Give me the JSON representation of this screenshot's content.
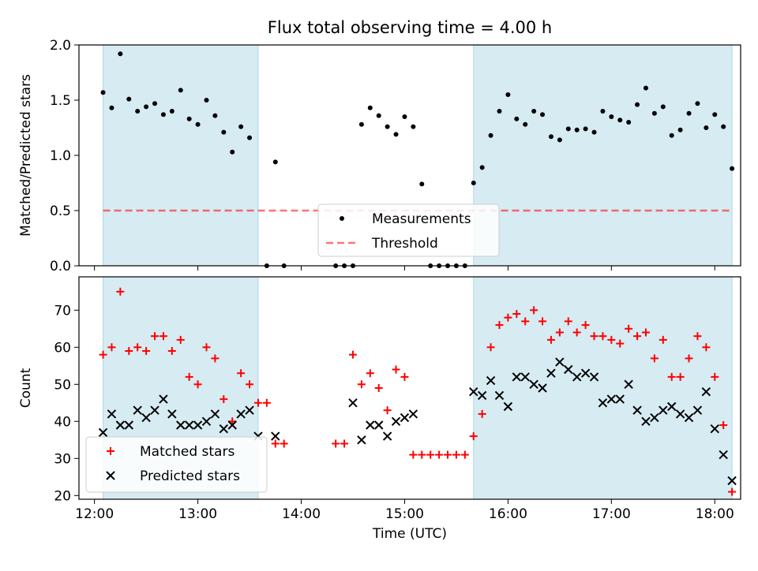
{
  "title": "Flux total observing time = 4.00 h",
  "colors": {
    "shade": "#add8e6",
    "measurements": "#000000",
    "threshold": "#ff0000",
    "matched": "#ff0000",
    "predicted": "#000000"
  },
  "chart_data": [
    {
      "type": "scatter",
      "ylabel": "Matched/Predicted stars",
      "ylim": [
        0,
        2.0
      ],
      "yticks": [
        "0.0",
        "0.5",
        "1.0",
        "1.5",
        "2.0"
      ],
      "grid": false,
      "legend_position": "bottom-center",
      "shaded_intervals": [
        [
          "12:05",
          "13:35"
        ],
        [
          "15:40",
          "18:10"
        ]
      ],
      "threshold": {
        "name": "Threshold",
        "value": 0.5,
        "x": [
          "12:05",
          "18:10"
        ]
      },
      "series": [
        {
          "name": "Measurements",
          "x": [
            "12:05",
            "12:10",
            "12:15",
            "12:20",
            "12:25",
            "12:30",
            "12:35",
            "12:40",
            "12:45",
            "12:50",
            "12:55",
            "13:00",
            "13:05",
            "13:10",
            "13:15",
            "13:20",
            "13:25",
            "13:30",
            "13:40",
            "13:45",
            "13:50",
            "14:20",
            "14:25",
            "14:30",
            "14:35",
            "14:40",
            "14:45",
            "14:50",
            "14:55",
            "15:00",
            "15:05",
            "15:10",
            "15:15",
            "15:20",
            "15:25",
            "15:30",
            "15:35",
            "15:40",
            "15:45",
            "15:50",
            "15:55",
            "16:00",
            "16:05",
            "16:10",
            "16:15",
            "16:20",
            "16:25",
            "16:30",
            "16:35",
            "16:40",
            "16:45",
            "16:50",
            "16:55",
            "17:00",
            "17:05",
            "17:10",
            "17:15",
            "17:20",
            "17:25",
            "17:30",
            "17:35",
            "17:40",
            "17:45",
            "17:50",
            "17:55",
            "18:00",
            "18:05",
            "18:10"
          ],
          "y": [
            1.57,
            1.43,
            1.92,
            1.51,
            1.4,
            1.44,
            1.47,
            1.37,
            1.4,
            1.59,
            1.33,
            1.28,
            1.5,
            1.36,
            1.21,
            1.03,
            1.26,
            1.16,
            0.0,
            0.94,
            0.0,
            0.0,
            0.0,
            0.0,
            1.28,
            1.43,
            1.36,
            1.26,
            1.19,
            1.35,
            1.26,
            0.74,
            0.0,
            0.0,
            0.0,
            0.0,
            0.0,
            0.75,
            0.89,
            1.18,
            1.4,
            1.55,
            1.33,
            1.28,
            1.4,
            1.37,
            1.17,
            1.14,
            1.24,
            1.23,
            1.24,
            1.21,
            1.4,
            1.35,
            1.32,
            1.3,
            1.46,
            1.61,
            1.38,
            1.44,
            1.18,
            1.23,
            1.38,
            1.47,
            1.25,
            1.37,
            1.26,
            0.88
          ]
        }
      ]
    },
    {
      "type": "scatter",
      "xlabel": "Time (UTC)",
      "ylabel": "Count",
      "ylim": [
        19,
        79
      ],
      "yticks": [
        "20",
        "30",
        "40",
        "50",
        "60",
        "70"
      ],
      "xticks": [
        "12:00",
        "13:00",
        "14:00",
        "15:00",
        "16:00",
        "17:00",
        "18:00"
      ],
      "grid": false,
      "legend_position": "bottom-left",
      "shaded_intervals": [
        [
          "12:05",
          "13:35"
        ],
        [
          "15:40",
          "18:10"
        ]
      ],
      "series": [
        {
          "name": "Matched stars",
          "marker": "plus",
          "x": [
            "12:05",
            "12:10",
            "12:15",
            "12:20",
            "12:25",
            "12:30",
            "12:35",
            "12:40",
            "12:45",
            "12:50",
            "12:55",
            "13:00",
            "13:05",
            "13:10",
            "13:15",
            "13:20",
            "13:25",
            "13:30",
            "13:35",
            "13:40",
            "13:45",
            "13:50",
            "14:20",
            "14:25",
            "14:30",
            "14:35",
            "14:40",
            "14:45",
            "14:50",
            "14:55",
            "15:00",
            "15:05",
            "15:10",
            "15:15",
            "15:20",
            "15:25",
            "15:30",
            "15:35",
            "15:40",
            "15:45",
            "15:50",
            "15:55",
            "16:00",
            "16:05",
            "16:10",
            "16:15",
            "16:20",
            "16:25",
            "16:30",
            "16:35",
            "16:40",
            "16:45",
            "16:50",
            "16:55",
            "17:00",
            "17:05",
            "17:10",
            "17:15",
            "17:20",
            "17:25",
            "17:30",
            "17:35",
            "17:40",
            "17:45",
            "17:50",
            "17:55",
            "18:00",
            "18:05",
            "18:10"
          ],
          "y": [
            58,
            60,
            75,
            59,
            60,
            59,
            63,
            63,
            59,
            62,
            52,
            50,
            60,
            57,
            46,
            40,
            53,
            50,
            45,
            45,
            34,
            34,
            34,
            34,
            58,
            50,
            53,
            49,
            43,
            54,
            52,
            31,
            31,
            31,
            31,
            31,
            31,
            31,
            36,
            42,
            60,
            66,
            68,
            69,
            67,
            70,
            67,
            62,
            64,
            67,
            64,
            66,
            63,
            63,
            62,
            61,
            65,
            63,
            64,
            57,
            62,
            52,
            52,
            57,
            63,
            60,
            52,
            39,
            21
          ]
        },
        {
          "name": "Predicted stars",
          "marker": "x",
          "x": [
            "12:05",
            "12:10",
            "12:15",
            "12:20",
            "12:25",
            "12:30",
            "12:35",
            "12:40",
            "12:45",
            "12:50",
            "12:55",
            "13:00",
            "13:05",
            "13:10",
            "13:15",
            "13:20",
            "13:25",
            "13:30",
            "13:35",
            "13:45",
            "14:30",
            "14:35",
            "14:40",
            "14:45",
            "14:50",
            "14:55",
            "15:00",
            "15:05",
            "15:40",
            "15:45",
            "15:50",
            "15:55",
            "16:00",
            "16:05",
            "16:10",
            "16:15",
            "16:20",
            "16:25",
            "16:30",
            "16:35",
            "16:40",
            "16:45",
            "16:50",
            "16:55",
            "17:00",
            "17:05",
            "17:10",
            "17:15",
            "17:20",
            "17:25",
            "17:30",
            "17:35",
            "17:40",
            "17:45",
            "17:50",
            "17:55",
            "18:00",
            "18:05",
            "18:10"
          ],
          "y": [
            37,
            42,
            39,
            39,
            43,
            41,
            43,
            46,
            42,
            39,
            39,
            39,
            40,
            42,
            38,
            39,
            42,
            43,
            36,
            36,
            45,
            35,
            39,
            39,
            36,
            40,
            41,
            42,
            48,
            47,
            51,
            47,
            44,
            52,
            52,
            50,
            49,
            53,
            56,
            54,
            52,
            53,
            52,
            45,
            46,
            46,
            50,
            43,
            40,
            41,
            43,
            44,
            42,
            41,
            43,
            48,
            38,
            31,
            24
          ]
        }
      ]
    }
  ]
}
